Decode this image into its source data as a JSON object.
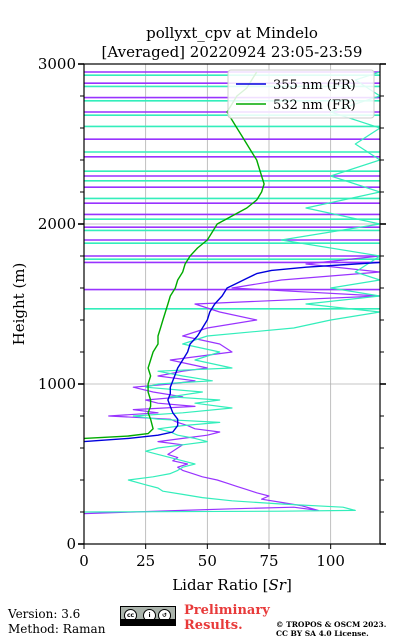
{
  "colors": {
    "series_355": "#0000dd",
    "series_532": "#00aa00",
    "ref_purple": "#9933ff",
    "ref_cyan": "#33eebb",
    "prelim": "#e83a3a"
  },
  "footer": {
    "version": "Version: 3.6",
    "method": "Method: Raman",
    "prelim_line1": "Preliminary",
    "prelim_line2": "Results.",
    "copyright_line1": "© TROPOS & OSCM 2023.",
    "copyright_line2": "CC BY SA 4.0 License.",
    "cc_logo_icons": [
      "cc-icon",
      "by-icon",
      "sa-icon"
    ]
  },
  "chart_data": {
    "type": "line",
    "title": "pollyxt_cpv at Mindelo",
    "subtitle": "[Averaged] 20220924 23:05-23:59",
    "xlabel": "Lidar Ratio [$Sr$]",
    "ylabel": "Height (m)",
    "xlim": [
      0,
      120
    ],
    "ylim": [
      0,
      3000
    ],
    "xticks": [
      0,
      25,
      50,
      75,
      100
    ],
    "yticks": [
      0,
      1000,
      2000,
      3000
    ],
    "grid": true,
    "legend_position": "top-right",
    "series": [
      {
        "name": "355 nm (FR)",
        "color": "#0000dd",
        "points": [
          [
            0,
            640
          ],
          [
            18,
            660
          ],
          [
            30,
            680
          ],
          [
            36,
            700
          ],
          [
            38,
            740
          ],
          [
            38,
            780
          ],
          [
            36,
            820
          ],
          [
            35,
            860
          ],
          [
            34,
            900
          ],
          [
            35,
            940
          ],
          [
            35,
            980
          ],
          [
            36,
            1020
          ],
          [
            37,
            1060
          ],
          [
            38,
            1100
          ],
          [
            40,
            1150
          ],
          [
            42,
            1200
          ],
          [
            43,
            1250
          ],
          [
            46,
            1300
          ],
          [
            48,
            1350
          ],
          [
            50,
            1400
          ],
          [
            51,
            1450
          ],
          [
            53,
            1500
          ],
          [
            56,
            1550
          ],
          [
            58,
            1600
          ],
          [
            62,
            1630
          ],
          [
            66,
            1660
          ],
          [
            70,
            1690
          ],
          [
            76,
            1710
          ],
          [
            90,
            1730
          ],
          [
            110,
            1750
          ],
          [
            120,
            1760
          ]
        ]
      },
      {
        "name": "532 nm (FR)",
        "color": "#00aa00",
        "points": [
          [
            0,
            660
          ],
          [
            18,
            675
          ],
          [
            26,
            690
          ],
          [
            28,
            720
          ],
          [
            27,
            780
          ],
          [
            26,
            820
          ],
          [
            27,
            860
          ],
          [
            27,
            900
          ],
          [
            26,
            950
          ],
          [
            26,
            1000
          ],
          [
            27,
            1050
          ],
          [
            26,
            1100
          ],
          [
            27,
            1150
          ],
          [
            28,
            1200
          ],
          [
            30,
            1250
          ],
          [
            30,
            1300
          ],
          [
            31,
            1350
          ],
          [
            32,
            1400
          ],
          [
            33,
            1450
          ],
          [
            34,
            1500
          ],
          [
            35,
            1550
          ],
          [
            37,
            1600
          ],
          [
            38,
            1650
          ],
          [
            40,
            1700
          ],
          [
            41,
            1750
          ],
          [
            43,
            1800
          ],
          [
            46,
            1850
          ],
          [
            50,
            1900
          ],
          [
            52,
            1950
          ],
          [
            54,
            2000
          ],
          [
            60,
            2050
          ],
          [
            66,
            2100
          ],
          [
            70,
            2150
          ],
          [
            72,
            2200
          ],
          [
            73,
            2250
          ],
          [
            72,
            2300
          ],
          [
            71,
            2350
          ],
          [
            70,
            2400
          ],
          [
            68,
            2450
          ],
          [
            66,
            2500
          ],
          [
            64,
            2550
          ],
          [
            62,
            2600
          ],
          [
            60,
            2650
          ],
          [
            58,
            2700
          ],
          [
            60,
            2750
          ],
          [
            62,
            2800
          ],
          [
            66,
            2850
          ],
          [
            68,
            2900
          ],
          [
            70,
            2950
          ]
        ]
      },
      {
        "color": "#9933ff",
        "points": [
          [
            0,
            190
          ],
          [
            20,
            200
          ],
          [
            40,
            210
          ],
          [
            60,
            220
          ],
          [
            85,
            230
          ],
          [
            95,
            210
          ],
          [
            88,
            240
          ],
          [
            80,
            260
          ],
          [
            72,
            280
          ],
          [
            75,
            300
          ],
          [
            70,
            320
          ],
          [
            66,
            340
          ],
          [
            62,
            360
          ],
          [
            58,
            380
          ],
          [
            54,
            400
          ],
          [
            48,
            420
          ],
          [
            44,
            440
          ],
          [
            40,
            460
          ],
          [
            38,
            480
          ],
          [
            42,
            500
          ],
          [
            36,
            520
          ],
          [
            38,
            540
          ],
          [
            34,
            560
          ],
          [
            36,
            580
          ],
          [
            38,
            600
          ],
          [
            40,
            620
          ],
          [
            30,
            640
          ],
          [
            40,
            660
          ],
          [
            50,
            680
          ],
          [
            55,
            700
          ],
          [
            45,
            720
          ],
          [
            42,
            740
          ],
          [
            38,
            760
          ],
          [
            35,
            780
          ],
          [
            10,
            800
          ],
          [
            30,
            820
          ],
          [
            20,
            840
          ],
          [
            45,
            860
          ],
          [
            30,
            880
          ],
          [
            25,
            900
          ],
          [
            40,
            920
          ],
          [
            28,
            950
          ],
          [
            20,
            980
          ],
          [
            35,
            1000
          ],
          [
            45,
            1020
          ],
          [
            30,
            1050
          ],
          [
            40,
            1080
          ],
          [
            50,
            1100
          ],
          [
            35,
            1150
          ],
          [
            60,
            1200
          ],
          [
            55,
            1250
          ],
          [
            40,
            1300
          ],
          [
            50,
            1350
          ],
          [
            70,
            1400
          ],
          [
            55,
            1450
          ],
          [
            45,
            1500
          ],
          [
            120,
            1550
          ],
          [
            60,
            1600
          ],
          [
            80,
            1650
          ],
          [
            120,
            1700
          ],
          [
            90,
            1750
          ],
          [
            120,
            1800
          ]
        ]
      },
      {
        "color": "#33eebb",
        "points": [
          [
            0,
            200
          ],
          [
            80,
            205
          ],
          [
            110,
            210
          ],
          [
            105,
            230
          ],
          [
            80,
            250
          ],
          [
            60,
            270
          ],
          [
            48,
            290
          ],
          [
            40,
            310
          ],
          [
            32,
            330
          ],
          [
            30,
            350
          ],
          [
            25,
            370
          ],
          [
            18,
            400
          ],
          [
            28,
            420
          ],
          [
            35,
            440
          ],
          [
            38,
            460
          ],
          [
            40,
            480
          ],
          [
            45,
            500
          ],
          [
            40,
            520
          ],
          [
            35,
            540
          ],
          [
            30,
            560
          ],
          [
            25,
            580
          ],
          [
            30,
            600
          ],
          [
            40,
            620
          ],
          [
            50,
            640
          ],
          [
            45,
            660
          ],
          [
            38,
            680
          ],
          [
            35,
            700
          ],
          [
            30,
            720
          ],
          [
            40,
            740
          ],
          [
            55,
            760
          ],
          [
            30,
            780
          ],
          [
            20,
            800
          ],
          [
            40,
            820
          ],
          [
            60,
            850
          ],
          [
            45,
            880
          ],
          [
            55,
            900
          ],
          [
            35,
            920
          ],
          [
            48,
            950
          ],
          [
            25,
            980
          ],
          [
            30,
            1000
          ],
          [
            52,
            1020
          ],
          [
            40,
            1050
          ],
          [
            30,
            1080
          ],
          [
            60,
            1100
          ],
          [
            45,
            1150
          ],
          [
            55,
            1200
          ],
          [
            40,
            1250
          ],
          [
            50,
            1300
          ],
          [
            85,
            1350
          ],
          [
            100,
            1400
          ],
          [
            120,
            1450
          ],
          [
            90,
            1500
          ],
          [
            120,
            1550
          ],
          [
            100,
            1600
          ],
          [
            120,
            1650
          ],
          [
            110,
            1700
          ],
          [
            120,
            1800
          ],
          [
            80,
            1900
          ],
          [
            120,
            2000
          ],
          [
            90,
            2100
          ],
          [
            120,
            2200
          ],
          [
            100,
            2300
          ],
          [
            120,
            2400
          ],
          [
            110,
            2500
          ],
          [
            120,
            2600
          ],
          [
            100,
            2700
          ],
          [
            120,
            2800
          ],
          [
            110,
            2900
          ],
          [
            120,
            2950
          ]
        ]
      }
    ],
    "bands": [
      {
        "y": 2950,
        "color": "#9933ff"
      },
      {
        "y": 2930,
        "color": "#33eebb"
      },
      {
        "y": 2880,
        "color": "#9933ff"
      },
      {
        "y": 2860,
        "color": "#33eebb"
      },
      {
        "y": 2790,
        "color": "#9933ff"
      },
      {
        "y": 2770,
        "color": "#33eebb"
      },
      {
        "y": 2700,
        "color": "#9933ff"
      },
      {
        "y": 2680,
        "color": "#33eebb"
      },
      {
        "y": 2610,
        "color": "#33eebb"
      },
      {
        "y": 2530,
        "color": "#9933ff"
      },
      {
        "y": 2450,
        "color": "#33eebb"
      },
      {
        "y": 2420,
        "color": "#9933ff"
      },
      {
        "y": 2330,
        "color": "#33eebb"
      },
      {
        "y": 2300,
        "color": "#9933ff"
      },
      {
        "y": 2270,
        "color": "#33eebb"
      },
      {
        "y": 2230,
        "color": "#9933ff"
      },
      {
        "y": 2160,
        "color": "#33eebb"
      },
      {
        "y": 2130,
        "color": "#9933ff"
      },
      {
        "y": 2060,
        "color": "#9933ff"
      },
      {
        "y": 2030,
        "color": "#33eebb"
      },
      {
        "y": 1980,
        "color": "#9933ff"
      },
      {
        "y": 1960,
        "color": "#33eebb"
      },
      {
        "y": 1900,
        "color": "#9933ff"
      },
      {
        "y": 1880,
        "color": "#33eebb"
      },
      {
        "y": 1800,
        "color": "#9933ff"
      },
      {
        "y": 1780,
        "color": "#33eebb"
      },
      {
        "y": 1760,
        "color": "#9933ff"
      },
      {
        "y": 1590,
        "color": "#9933ff"
      },
      {
        "y": 1470,
        "color": "#33eebb"
      }
    ]
  }
}
